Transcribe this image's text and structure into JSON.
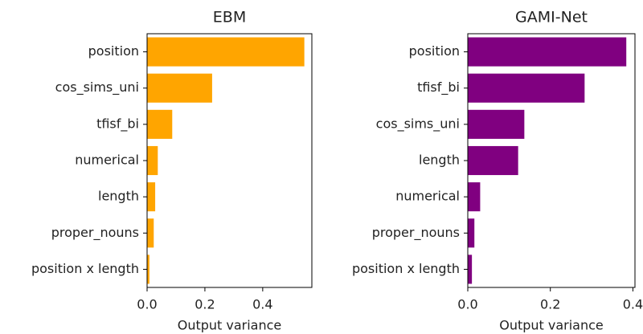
{
  "chart_data": [
    {
      "type": "barh",
      "title": "EBM",
      "xlabel": "Output variance",
      "categories": [
        "position",
        "cos_sims_uni",
        "tfisf_bi",
        "numerical",
        "length",
        "proper_nouns",
        "position x length"
      ],
      "values": [
        0.544,
        0.225,
        0.087,
        0.037,
        0.028,
        0.023,
        0.008
      ],
      "color": "#ffa500",
      "xlim": [
        0,
        0.57
      ],
      "xticks": [
        {
          "value": 0,
          "label": "0.0"
        },
        0.2,
        0.4
      ]
    },
    {
      "type": "barh",
      "title": "GAMI-Net",
      "xlabel": "Output variance",
      "categories": [
        "position",
        "tfisf_bi",
        "cos_sims_uni",
        "length",
        "numerical",
        "proper_nouns",
        "position x length"
      ],
      "values": [
        0.384,
        0.283,
        0.137,
        0.122,
        0.03,
        0.016,
        0.01
      ],
      "color": "#800080",
      "xlim": [
        0,
        0.405
      ],
      "xticks": [
        {
          "value": 0,
          "label": "0.0"
        },
        0.2,
        0.4
      ]
    }
  ]
}
